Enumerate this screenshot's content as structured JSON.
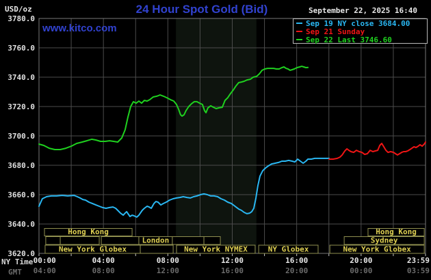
{
  "header": {
    "unit_label": "USD/oz",
    "title": "24 Hour Spot Gold (Bid)",
    "watermark": "www.kitco.com",
    "datetime": "September 22, 2025 16:40"
  },
  "theme": {
    "title_blue": "#3142cf",
    "background": "#000000",
    "grid": "#4c4c4c",
    "frame": "#787878",
    "nymex_band": "#0e140e",
    "axis_text": "#e0e0e0",
    "gmt_text": "#6b6b6b",
    "session_border": "#8f8f4f",
    "session_text": "#decf52",
    "tick_mark": "#c4c4c4"
  },
  "legend": {
    "items": [
      {
        "label": "Sep 19 NY close 3684.00",
        "color": "#2ab7f2"
      },
      {
        "label": "Sep 21 Sunday",
        "color": "#f01515"
      },
      {
        "label": "Sep 22 Last 3746.60",
        "color": "#1fd11f"
      }
    ]
  },
  "axes": {
    "x_axis_name": "NY Time",
    "x_axis_name_2": "GMT",
    "ticks": [
      {
        "t": 0.35,
        "ny": "00:00",
        "gmt": "04:00"
      },
      {
        "t": 4,
        "ny": "04:00",
        "gmt": "08:00"
      },
      {
        "t": 8,
        "ny": "08:00",
        "gmt": "12:00"
      },
      {
        "t": 12,
        "ny": "12:00",
        "gmt": "16:00"
      },
      {
        "t": 16,
        "ny": "16:00",
        "gmt": "20:00"
      },
      {
        "t": 20,
        "ny": "20:00",
        "gmt": "00:00"
      },
      {
        "t": 23.983,
        "ny": "23:59",
        "gmt": "03:59",
        "align": "right"
      }
    ],
    "y_ticks": [
      {
        "p": 3780,
        "label": "3780.0"
      },
      {
        "p": 3760,
        "label": "3760.0"
      },
      {
        "p": 3740,
        "label": "3740.0"
      },
      {
        "p": 3720,
        "label": "3720.0"
      },
      {
        "p": 3700,
        "label": "3700.0"
      },
      {
        "p": 3680,
        "label": "3680.0"
      },
      {
        "p": 3660,
        "label": "3660.0"
      },
      {
        "p": 3640,
        "label": "3640.0"
      },
      {
        "p": 3620,
        "label": "3620.0"
      }
    ]
  },
  "sessions": {
    "rows": [
      {
        "y": 334.5,
        "h": 11
      },
      {
        "y": 346.5,
        "h": 11.5
      },
      {
        "y": 359,
        "h": 12
      }
    ],
    "boxes": [
      {
        "row": 0,
        "t1": 0.34,
        "t2": 5.78,
        "label": "Hong Kong"
      },
      {
        "row": 0,
        "t1": 20.43,
        "t2": 23.92,
        "label": "Hong Kong"
      },
      {
        "row": 1,
        "t1": 0.42,
        "t2": 1.32,
        "label": ""
      },
      {
        "row": 1,
        "t1": 1.32,
        "t2": 3.74,
        "label": ""
      },
      {
        "row": 1,
        "t1": 3.87,
        "t2": 6.2,
        "label": ""
      },
      {
        "row": 1,
        "t1": 6.2,
        "t2": 8.28,
        "label": "London"
      },
      {
        "row": 1,
        "t1": 8.28,
        "t2": 10.24,
        "label": ""
      },
      {
        "row": 1,
        "t1": 10.24,
        "t2": 11.26,
        "label": ""
      },
      {
        "row": 1,
        "t1": 18.95,
        "t2": 23.92,
        "label": "Sydney"
      },
      {
        "row": 2,
        "t1": 0.38,
        "t2": 6.29,
        "label": "New York Globex"
      },
      {
        "row": 2,
        "t1": 6.29,
        "t2": 8.33,
        "label": ""
      },
      {
        "row": 2,
        "t1": 8.54,
        "t2": 13.42,
        "label": "New York NYMEX"
      },
      {
        "row": 2,
        "t1": 13.64,
        "t2": 17.33,
        "label": "NY Globex"
      },
      {
        "row": 2,
        "t1": 18.06,
        "t2": 23.92,
        "label": "New York Globex"
      }
    ]
  },
  "chart_data": {
    "type": "line",
    "title": "24 Hour Spot Gold (Bid)",
    "xlabel": "NY Time (hours)",
    "ylabel": "USD/oz",
    "xlim": [
      0,
      24
    ],
    "ylim": [
      3620,
      3780
    ],
    "grid": true,
    "highlight_band_hours": [
      8.5,
      13.5
    ],
    "series": [
      {
        "name": "Sep 19 NY close 3684.00",
        "color": "#2ab7f2",
        "points": [
          [
            0,
            3652.1
          ],
          [
            0.21,
            3657.2
          ],
          [
            0.47,
            3658.6
          ],
          [
            0.76,
            3659.1
          ],
          [
            1.1,
            3659.1
          ],
          [
            1.44,
            3659.5
          ],
          [
            1.78,
            3659.1
          ],
          [
            2.17,
            3659.5
          ],
          [
            2.38,
            3658.6
          ],
          [
            2.55,
            3657.7
          ],
          [
            2.72,
            3656.7
          ],
          [
            2.89,
            3656.3
          ],
          [
            3.1,
            3654.9
          ],
          [
            3.31,
            3654
          ],
          [
            3.53,
            3653
          ],
          [
            3.74,
            3652.1
          ],
          [
            3.95,
            3651.2
          ],
          [
            4.16,
            3650.7
          ],
          [
            4.38,
            3651.2
          ],
          [
            4.59,
            3651.6
          ],
          [
            4.76,
            3650.7
          ],
          [
            4.89,
            3649.3
          ],
          [
            5.06,
            3647.4
          ],
          [
            5.23,
            3646
          ],
          [
            5.35,
            3647.4
          ],
          [
            5.44,
            3648.4
          ],
          [
            5.56,
            3646.5
          ],
          [
            5.65,
            3645.1
          ],
          [
            5.78,
            3646
          ],
          [
            5.9,
            3645.6
          ],
          [
            6.07,
            3644.7
          ],
          [
            6.2,
            3646
          ],
          [
            6.29,
            3647.4
          ],
          [
            6.41,
            3649.3
          ],
          [
            6.54,
            3650.7
          ],
          [
            6.71,
            3652.1
          ],
          [
            6.84,
            3651.6
          ],
          [
            6.97,
            3650.7
          ],
          [
            7.14,
            3654
          ],
          [
            7.26,
            3655.3
          ],
          [
            7.39,
            3654.9
          ],
          [
            7.56,
            3653
          ],
          [
            7.73,
            3654
          ],
          [
            7.9,
            3654.9
          ],
          [
            8.11,
            3656.3
          ],
          [
            8.33,
            3657.2
          ],
          [
            8.54,
            3657.7
          ],
          [
            8.75,
            3658.1
          ],
          [
            8.96,
            3658.6
          ],
          [
            9.18,
            3658.1
          ],
          [
            9.39,
            3657.7
          ],
          [
            9.6,
            3658.6
          ],
          [
            9.81,
            3659.1
          ],
          [
            10.03,
            3660
          ],
          [
            10.24,
            3660.5
          ],
          [
            10.45,
            3660
          ],
          [
            10.66,
            3659.1
          ],
          [
            10.87,
            3659.1
          ],
          [
            11.09,
            3658.6
          ],
          [
            11.3,
            3657.2
          ],
          [
            11.51,
            3656.3
          ],
          [
            11.72,
            3654.9
          ],
          [
            11.94,
            3654
          ],
          [
            12.11,
            3652.6
          ],
          [
            12.23,
            3651.6
          ],
          [
            12.4,
            3650.2
          ],
          [
            12.57,
            3649.3
          ],
          [
            12.74,
            3647.9
          ],
          [
            12.91,
            3647
          ],
          [
            13.08,
            3647.4
          ],
          [
            13.21,
            3648.4
          ],
          [
            13.34,
            3650.7
          ],
          [
            13.47,
            3657.7
          ],
          [
            13.59,
            3666
          ],
          [
            13.72,
            3672.6
          ],
          [
            13.89,
            3676.3
          ],
          [
            14.06,
            3678.1
          ],
          [
            14.23,
            3679.5
          ],
          [
            14.44,
            3680.9
          ],
          [
            14.66,
            3681.4
          ],
          [
            14.87,
            3681.9
          ],
          [
            15.08,
            3682.8
          ],
          [
            15.29,
            3682.8
          ],
          [
            15.5,
            3683.3
          ],
          [
            15.72,
            3682.8
          ],
          [
            15.89,
            3682.3
          ],
          [
            16.06,
            3684.2
          ],
          [
            16.23,
            3682.8
          ],
          [
            16.4,
            3681.4
          ],
          [
            16.57,
            3682.8
          ],
          [
            16.7,
            3684.2
          ],
          [
            16.91,
            3684.2
          ],
          [
            17.12,
            3684.7
          ],
          [
            17.33,
            3684.7
          ],
          [
            17.63,
            3684.7
          ],
          [
            18.01,
            3684.7
          ]
        ]
      },
      {
        "name": "Sep 21 Sunday",
        "color": "#f01515",
        "points": [
          [
            18.01,
            3684.2
          ],
          [
            18.27,
            3684.2
          ],
          [
            18.52,
            3684.7
          ],
          [
            18.69,
            3685.6
          ],
          [
            18.82,
            3687
          ],
          [
            18.99,
            3689.8
          ],
          [
            19.12,
            3691.2
          ],
          [
            19.24,
            3690.2
          ],
          [
            19.37,
            3689.3
          ],
          [
            19.54,
            3688.8
          ],
          [
            19.71,
            3690.2
          ],
          [
            19.88,
            3689.3
          ],
          [
            20.05,
            3688.8
          ],
          [
            20.22,
            3687.4
          ],
          [
            20.39,
            3687.9
          ],
          [
            20.56,
            3690.2
          ],
          [
            20.73,
            3689.3
          ],
          [
            20.9,
            3689.8
          ],
          [
            21.03,
            3690.2
          ],
          [
            21.16,
            3693.5
          ],
          [
            21.28,
            3694.9
          ],
          [
            21.41,
            3692.6
          ],
          [
            21.54,
            3690.2
          ],
          [
            21.67,
            3688.8
          ],
          [
            21.84,
            3689.3
          ],
          [
            22.01,
            3688.8
          ],
          [
            22.13,
            3687.9
          ],
          [
            22.26,
            3687
          ],
          [
            22.39,
            3687.9
          ],
          [
            22.52,
            3688.8
          ],
          [
            22.64,
            3689.3
          ],
          [
            22.77,
            3689.3
          ],
          [
            22.9,
            3689.8
          ],
          [
            23.03,
            3690.7
          ],
          [
            23.15,
            3691.6
          ],
          [
            23.28,
            3692.6
          ],
          [
            23.41,
            3692.1
          ],
          [
            23.54,
            3693
          ],
          [
            23.66,
            3694
          ],
          [
            23.79,
            3693
          ],
          [
            23.92,
            3694.4
          ],
          [
            24,
            3695.8
          ]
        ]
      },
      {
        "name": "Sep 22 Last 3746.60",
        "color": "#1fd11f",
        "points": [
          [
            0,
            3694.4
          ],
          [
            0.3,
            3693.5
          ],
          [
            0.64,
            3691.6
          ],
          [
            0.98,
            3690.7
          ],
          [
            1.32,
            3690.7
          ],
          [
            1.66,
            3691.6
          ],
          [
            2,
            3693
          ],
          [
            2.34,
            3694.9
          ],
          [
            2.68,
            3695.8
          ],
          [
            2.97,
            3696.7
          ],
          [
            3.27,
            3697.7
          ],
          [
            3.53,
            3697.2
          ],
          [
            3.82,
            3696.3
          ],
          [
            4.12,
            3696.3
          ],
          [
            4.38,
            3696.7
          ],
          [
            4.63,
            3696.3
          ],
          [
            4.89,
            3695.8
          ],
          [
            5.14,
            3698.6
          ],
          [
            5.35,
            3704.2
          ],
          [
            5.52,
            3712.6
          ],
          [
            5.69,
            3720
          ],
          [
            5.86,
            3723.3
          ],
          [
            6.03,
            3722.3
          ],
          [
            6.2,
            3723.7
          ],
          [
            6.37,
            3722.3
          ],
          [
            6.54,
            3724.2
          ],
          [
            6.71,
            3723.7
          ],
          [
            6.88,
            3724.7
          ],
          [
            7.09,
            3726.5
          ],
          [
            7.31,
            3727
          ],
          [
            7.52,
            3727.9
          ],
          [
            7.73,
            3727
          ],
          [
            7.94,
            3726
          ],
          [
            8.16,
            3724.7
          ],
          [
            8.37,
            3723.7
          ],
          [
            8.54,
            3721.4
          ],
          [
            8.67,
            3718.1
          ],
          [
            8.79,
            3714.4
          ],
          [
            8.88,
            3713.5
          ],
          [
            9.01,
            3714.4
          ],
          [
            9.13,
            3717.2
          ],
          [
            9.3,
            3720
          ],
          [
            9.47,
            3721.9
          ],
          [
            9.64,
            3723.3
          ],
          [
            9.81,
            3723.3
          ],
          [
            9.98,
            3722.3
          ],
          [
            10.15,
            3721.4
          ],
          [
            10.28,
            3717.2
          ],
          [
            10.37,
            3715.8
          ],
          [
            10.49,
            3719.1
          ],
          [
            10.66,
            3720.5
          ],
          [
            10.83,
            3719.5
          ],
          [
            11,
            3718.6
          ],
          [
            11.17,
            3719.1
          ],
          [
            11.38,
            3719.5
          ],
          [
            11.55,
            3724.2
          ],
          [
            11.72,
            3726
          ],
          [
            11.89,
            3728.8
          ],
          [
            12.06,
            3731.2
          ],
          [
            12.23,
            3734
          ],
          [
            12.4,
            3736.3
          ],
          [
            12.57,
            3736.7
          ],
          [
            12.74,
            3737.2
          ],
          [
            12.91,
            3738.1
          ],
          [
            13.13,
            3738.6
          ],
          [
            13.3,
            3740
          ],
          [
            13.51,
            3740.5
          ],
          [
            13.68,
            3742.3
          ],
          [
            13.85,
            3744.7
          ],
          [
            14.02,
            3745.6
          ],
          [
            14.19,
            3746
          ],
          [
            14.4,
            3746
          ],
          [
            14.57,
            3746
          ],
          [
            14.74,
            3745.6
          ],
          [
            14.91,
            3745.6
          ],
          [
            15.08,
            3746.5
          ],
          [
            15.21,
            3747
          ],
          [
            15.34,
            3746
          ],
          [
            15.46,
            3745.6
          ],
          [
            15.59,
            3744.7
          ],
          [
            15.72,
            3745.1
          ],
          [
            15.85,
            3745.6
          ],
          [
            16.02,
            3746.5
          ],
          [
            16.19,
            3747
          ],
          [
            16.31,
            3747.4
          ],
          [
            16.44,
            3747
          ],
          [
            16.57,
            3746.5
          ],
          [
            16.7,
            3746.6
          ]
        ]
      }
    ]
  }
}
